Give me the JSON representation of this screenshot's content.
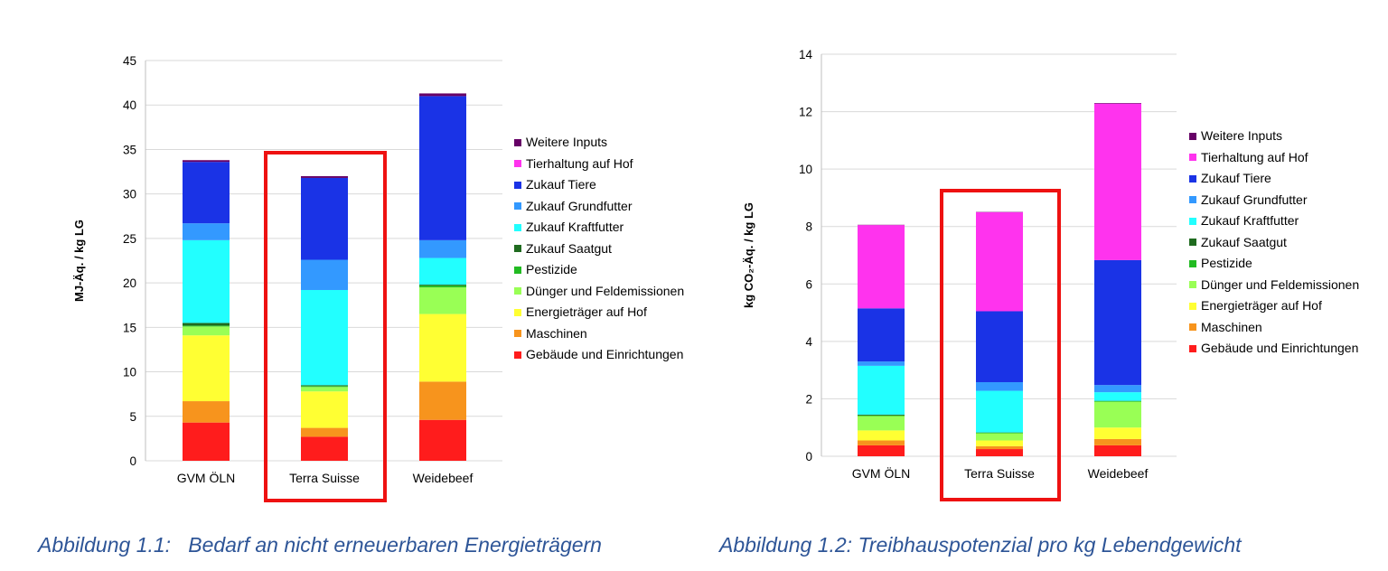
{
  "captions": {
    "left": "Abbildung 1.1:   Bedarf an nicht erneuerbaren Energieträgern",
    "right": "Abbildung 1.2: Treibhauspotenzial pro kg Lebendgewicht"
  },
  "legend_order": [
    "Weitere Inputs",
    "Tierhaltung auf Hof",
    "Zukauf Tiere",
    "Zukauf Grundfutter",
    "Zukauf Kraftfutter",
    "Zukauf Saatgut",
    "Pestizide",
    "Dünger und Feldemissionen",
    "Energieträger auf Hof",
    "Maschinen",
    "Gebäude und Einrichtungen"
  ],
  "colors": {
    "Gebäude und Einrichtungen": "#ff1c1c",
    "Maschinen": "#f7941d",
    "Energieträger auf Hof": "#ffff33",
    "Dünger und Feldemissionen": "#99ff55",
    "Pestizide": "#22bb22",
    "Zukauf Saatgut": "#1f6b1f",
    "Zukauf Kraftfutter": "#22ffff",
    "Zukauf Grundfutter": "#3399ff",
    "Zukauf Tiere": "#1a33e6",
    "Tierhaltung auf Hof": "#ff33ee",
    "Weitere Inputs": "#660066"
  },
  "highlight_color": "#ee1111",
  "chart_data": [
    {
      "type": "bar",
      "stacked": true,
      "ylabel": "MJ-Äq. / kg LG",
      "ylim": [
        0,
        45
      ],
      "yticks": [
        0,
        5,
        10,
        15,
        20,
        25,
        30,
        35,
        40,
        45
      ],
      "grid": true,
      "legend_position": "right",
      "categories": [
        "GVM ÖLN",
        "Terra Suisse",
        "Weidebeef"
      ],
      "highlighted_category": "Terra Suisse",
      "series": [
        {
          "name": "Gebäude und Einrichtungen",
          "values": [
            4.3,
            2.7,
            4.6
          ]
        },
        {
          "name": "Maschinen",
          "values": [
            2.4,
            1.0,
            4.3
          ]
        },
        {
          "name": "Energieträger auf Hof",
          "values": [
            7.4,
            4.1,
            7.6
          ]
        },
        {
          "name": "Dünger und Feldemissionen",
          "values": [
            1.0,
            0.5,
            3.0
          ]
        },
        {
          "name": "Pestizide",
          "values": [
            0.1,
            0.1,
            0.2
          ]
        },
        {
          "name": "Zukauf Saatgut",
          "values": [
            0.3,
            0.1,
            0.1
          ]
        },
        {
          "name": "Zukauf Kraftfutter",
          "values": [
            9.3,
            10.7,
            3.0
          ]
        },
        {
          "name": "Zukauf Grundfutter",
          "values": [
            1.9,
            3.4,
            2.0
          ]
        },
        {
          "name": "Zukauf Tiere",
          "values": [
            6.9,
            9.2,
            16.2
          ]
        },
        {
          "name": "Tierhaltung auf Hof",
          "values": [
            0,
            0,
            0
          ]
        },
        {
          "name": "Weitere Inputs",
          "values": [
            0.2,
            0.2,
            0.3
          ]
        }
      ]
    },
    {
      "type": "bar",
      "stacked": true,
      "ylabel": "kg CO₂-Äq. / kg LG",
      "ylim": [
        0,
        14
      ],
      "yticks": [
        0,
        2,
        4,
        6,
        8,
        10,
        12,
        14
      ],
      "grid": true,
      "legend_position": "right",
      "categories": [
        "GVM ÖLN",
        "Terra Suisse",
        "Weidebeef"
      ],
      "highlighted_category": "Terra Suisse",
      "series": [
        {
          "name": "Gebäude und Einrichtungen",
          "values": [
            0.38,
            0.25,
            0.38
          ]
        },
        {
          "name": "Maschinen",
          "values": [
            0.17,
            0.1,
            0.22
          ]
        },
        {
          "name": "Energieträger auf Hof",
          "values": [
            0.35,
            0.2,
            0.4
          ]
        },
        {
          "name": "Dünger und Feldemissionen",
          "values": [
            0.5,
            0.25,
            0.9
          ]
        },
        {
          "name": "Pestizide",
          "values": [
            0.02,
            0.02,
            0.02
          ]
        },
        {
          "name": "Zukauf Saatgut",
          "values": [
            0.03,
            0.01,
            0.01
          ]
        },
        {
          "name": "Zukauf Kraftfutter",
          "values": [
            1.7,
            1.45,
            0.3
          ]
        },
        {
          "name": "Zukauf Grundfutter",
          "values": [
            0.15,
            0.3,
            0.25
          ]
        },
        {
          "name": "Zukauf Tiere",
          "values": [
            1.85,
            2.47,
            4.35
          ]
        },
        {
          "name": "Tierhaltung auf Hof",
          "values": [
            2.9,
            3.45,
            5.45
          ]
        },
        {
          "name": "Weitere Inputs",
          "values": [
            0.01,
            0.01,
            0.02
          ]
        }
      ]
    }
  ]
}
